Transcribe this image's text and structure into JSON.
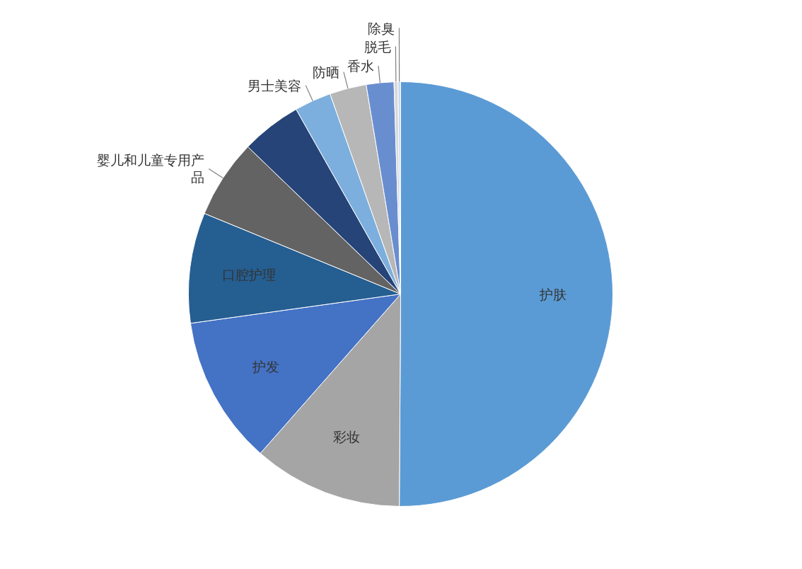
{
  "chart_data": {
    "type": "pie",
    "categories": [
      "护肤",
      "彩妆",
      "护发",
      "口腔护理",
      "婴儿和儿童专用产品",
      null,
      "男士美容",
      "防晒",
      "香水",
      "脱毛",
      "除臭"
    ],
    "values": [
      50.1,
      11.4,
      11.3,
      8.4,
      6.0,
      4.6,
      2.8,
      2.8,
      2.1,
      0.3,
      0.2
    ],
    "colors": [
      "#5b9bd5",
      "#a5a5a5",
      "#4472c4",
      "#255e91",
      "#636363",
      "#264478",
      "#7cafdd",
      "#b7b7b7",
      "#698ed0",
      "#d9d9d9",
      "#c9d9ef"
    ]
  }
}
